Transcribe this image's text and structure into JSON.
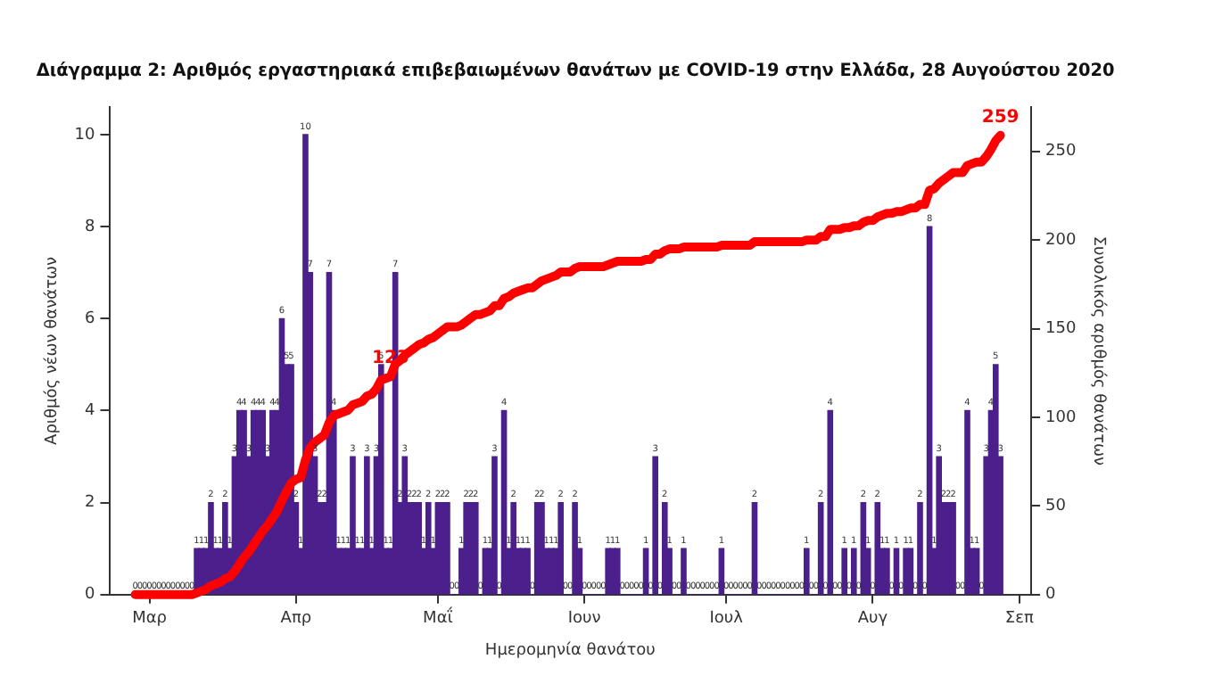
{
  "chart_data": {
    "type": "bar",
    "title": "Διάγραμμα 2: Αριθμός εργαστηριακά επιβεβαιωμένων θανάτων με COVID-19 στην Ελλάδα, 28 Αυγούστου 2020",
    "xlabel": "Ημερομηνία θανάτου",
    "ylabel": "Αριθμός νέων θανάτων",
    "y2label": "Συνολικός αριθμός θανάτων",
    "categories": [
      null,
      null,
      null,
      null,
      null,
      null,
      null,
      null,
      "Μαρ",
      null,
      null,
      null,
      null,
      null,
      null,
      null,
      null,
      null,
      null,
      null,
      null,
      null,
      null,
      null,
      null,
      null,
      null,
      null,
      null,
      null,
      null,
      null,
      null,
      null,
      null,
      null,
      null,
      null,
      null,
      "Απρ",
      null,
      null,
      null,
      null,
      null,
      null,
      null,
      null,
      null,
      null,
      null,
      null,
      null,
      null,
      null,
      null,
      null,
      null,
      null,
      null,
      null,
      null,
      null,
      null,
      null,
      null,
      null,
      null,
      null,
      "Μαΐ",
      null,
      null,
      null,
      null,
      null,
      null,
      null,
      null,
      null,
      null,
      null,
      null,
      null,
      null,
      null,
      null,
      null,
      null,
      null,
      null,
      null,
      null,
      null,
      null,
      null,
      null,
      null,
      null,
      null,
      null,
      "Ιουν",
      null,
      null,
      null,
      null,
      null,
      null,
      null,
      null,
      null,
      null,
      null,
      null,
      null,
      null,
      null,
      null,
      null,
      null,
      null,
      null,
      null,
      null,
      null,
      null,
      null,
      null,
      null,
      null,
      null,
      "Ιουλ",
      null,
      null,
      null,
      null,
      null,
      null,
      null,
      null,
      null,
      null,
      null,
      null,
      null,
      null,
      null,
      null,
      null,
      null,
      null,
      null,
      null,
      null,
      null,
      null,
      null,
      null,
      null,
      null,
      null,
      null,
      "Αυγ",
      null,
      null,
      null,
      null,
      null,
      null,
      null,
      null,
      null,
      null,
      null,
      null,
      null,
      null,
      null,
      null,
      null,
      null,
      null,
      null,
      null,
      null,
      null,
      null,
      null,
      null,
      null,
      null,
      null,
      null,
      "Σεπ",
      null,
      null
    ],
    "series": [
      {
        "color": "#4b1f8c",
        "data_labels": true,
        "values": [
          null,
          null,
          null,
          null,
          null,
          0,
          0,
          0,
          0,
          0,
          0,
          0,
          0,
          0,
          0,
          0,
          0,
          0,
          1,
          1,
          1,
          2,
          1,
          1,
          2,
          1,
          3,
          4,
          4,
          3,
          4,
          4,
          4,
          3,
          4,
          4,
          6,
          5,
          5,
          2,
          1,
          10,
          7,
          3,
          2,
          2,
          7,
          4,
          1,
          1,
          1,
          3,
          1,
          1,
          3,
          1,
          3,
          5,
          1,
          1,
          7,
          2,
          3,
          2,
          2,
          2,
          1,
          2,
          1,
          2,
          2,
          2,
          0,
          0,
          1,
          2,
          2,
          2,
          0,
          1,
          1,
          3,
          0,
          4,
          1,
          2,
          1,
          1,
          1,
          0,
          2,
          2,
          1,
          1,
          1,
          2,
          0,
          0,
          2,
          1,
          0,
          0,
          0,
          0,
          0,
          1,
          1,
          1,
          0,
          0,
          0,
          0,
          0,
          1,
          0,
          3,
          0,
          2,
          1,
          0,
          0,
          1,
          0,
          0,
          0,
          0,
          0,
          0,
          0,
          1,
          0,
          0,
          0,
          0,
          0,
          0,
          2,
          0,
          0,
          0,
          0,
          0,
          0,
          0,
          0,
          0,
          0,
          1,
          0,
          0,
          2,
          0,
          4,
          0,
          0,
          1,
          0,
          1,
          0,
          2,
          1,
          0,
          2,
          1,
          1,
          0,
          1,
          0,
          1,
          1,
          0,
          2,
          0,
          8,
          1,
          3,
          2,
          2,
          2,
          0,
          0,
          4,
          1,
          1,
          0,
          3,
          4,
          5,
          3,
          null,
          null,
          null,
          null,
          null,
          null
        ]
      },
      {
        "type": "line",
        "axis": "y2",
        "color": "#ff0000",
        "values": [
          null,
          null,
          null,
          null,
          null,
          0,
          0,
          0,
          0,
          0,
          0,
          0,
          0,
          0,
          0,
          0,
          0,
          0,
          1,
          2,
          3,
          5,
          6,
          7,
          9,
          10,
          13,
          17,
          21,
          24,
          28,
          32,
          36,
          39,
          43,
          47,
          53,
          58,
          63,
          65,
          66,
          76,
          83,
          86,
          88,
          90,
          97,
          101,
          102,
          103,
          104,
          107,
          108,
          109,
          112,
          113,
          116,
          121,
          122,
          123,
          130,
          132,
          135,
          137,
          139,
          141,
          142,
          144,
          145,
          147,
          149,
          151,
          151,
          151,
          152,
          154,
          156,
          158,
          158,
          159,
          160,
          163,
          163,
          167,
          168,
          170,
          171,
          172,
          173,
          173,
          175,
          177,
          178,
          179,
          180,
          182,
          182,
          182,
          184,
          185,
          185,
          185,
          185,
          185,
          185,
          186,
          187,
          188,
          188,
          188,
          188,
          188,
          188,
          189,
          189,
          192,
          192,
          194,
          195,
          195,
          195,
          196,
          196,
          196,
          196,
          196,
          196,
          196,
          196,
          197,
          197,
          197,
          197,
          197,
          197,
          197,
          199,
          199,
          199,
          199,
          199,
          199,
          199,
          199,
          199,
          199,
          199,
          200,
          200,
          200,
          202,
          202,
          206,
          206,
          206,
          207,
          207,
          208,
          208,
          210,
          211,
          211,
          213,
          214,
          215,
          215,
          216,
          216,
          217,
          218,
          218,
          220,
          220,
          228,
          229,
          232,
          234,
          236,
          238,
          238,
          238,
          242,
          243,
          244,
          244,
          247,
          251,
          256,
          259,
          null,
          null,
          null,
          null,
          null,
          null
        ],
        "value_labels": [
          null,
          null,
          null,
          null,
          null,
          null,
          null,
          null,
          null,
          null,
          null,
          null,
          null,
          null,
          null,
          null,
          null,
          null,
          null,
          null,
          null,
          null,
          null,
          null,
          null,
          null,
          null,
          null,
          null,
          null,
          null,
          null,
          null,
          null,
          null,
          null,
          null,
          null,
          null,
          null,
          null,
          null,
          null,
          null,
          null,
          null,
          null,
          null,
          null,
          null,
          null,
          null,
          null,
          null,
          null,
          null,
          null,
          null,
          null,
          "123",
          null,
          null,
          null,
          null,
          null,
          null,
          null,
          null,
          null,
          null,
          null,
          null,
          null,
          null,
          null,
          null,
          null,
          null,
          null,
          null,
          null,
          null,
          null,
          null,
          null,
          null,
          null,
          null,
          null,
          null,
          null,
          null,
          null,
          null,
          null,
          null,
          null,
          null,
          null,
          null,
          null,
          null,
          null,
          null,
          null,
          null,
          null,
          null,
          null,
          null,
          null,
          null,
          null,
          null,
          null,
          null,
          null,
          null,
          null,
          null,
          null,
          null,
          null,
          null,
          null,
          null,
          null,
          null,
          null,
          null,
          null,
          null,
          null,
          null,
          null,
          null,
          null,
          null,
          null,
          null,
          null,
          null,
          null,
          null,
          null,
          null,
          null,
          null,
          null,
          null,
          null,
          null,
          null,
          null,
          null,
          null,
          null,
          null,
          null,
          null,
          null,
          null,
          null,
          null,
          null,
          null,
          null,
          null,
          null,
          null,
          null,
          null,
          null,
          null,
          null,
          null,
          null,
          null,
          null,
          null,
          null,
          null,
          null,
          null,
          null,
          null,
          null,
          null,
          "259",
          null,
          null,
          null,
          null,
          null,
          null
        ]
      }
    ],
    "ylim": [
      0,
      10.6
    ],
    "yticks": [
      0,
      2,
      4,
      6,
      8,
      10
    ],
    "y2lim": [
      0,
      275
    ],
    "y2ticks": [
      0,
      50,
      100,
      150,
      200,
      250
    ],
    "line_style": "solid"
  }
}
